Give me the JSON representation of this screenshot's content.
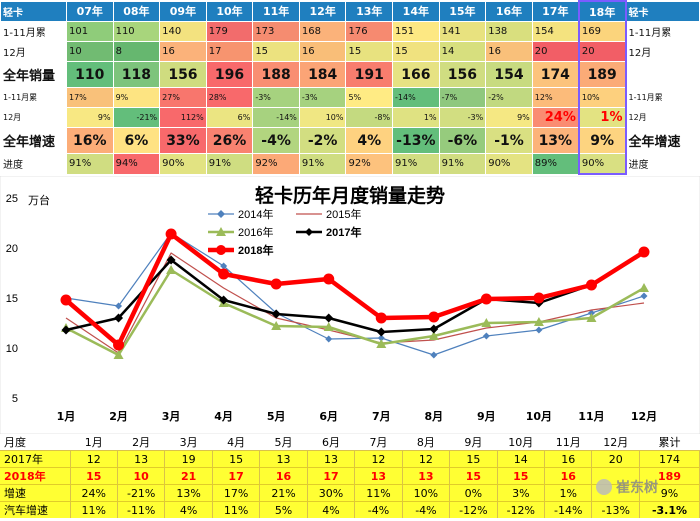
{
  "summary": {
    "header": {
      "label": "轻卡",
      "years": [
        "07年",
        "08年",
        "09年",
        "10年",
        "11年",
        "12年",
        "13年",
        "14年",
        "15年",
        "16年",
        "17年",
        "18年"
      ],
      "right_label": "轻卡"
    },
    "rows": [
      {
        "label": "1-11月累",
        "right_label": "1-11月累",
        "type": "normal",
        "values": [
          "101",
          "110",
          "140",
          "179",
          "173",
          "168",
          "176",
          "151",
          "141",
          "138",
          "154",
          "169"
        ]
      },
      {
        "label": "12月",
        "right_label": "12月",
        "type": "normal",
        "values": [
          "10",
          "8",
          "16",
          "17",
          "15",
          "16",
          "15",
          "15",
          "14",
          "16",
          "20",
          "20"
        ]
      },
      {
        "label": "全年销量",
        "right_label": "",
        "type": "big",
        "values": [
          "110",
          "118",
          "156",
          "196",
          "188",
          "184",
          "191",
          "166",
          "156",
          "154",
          "174",
          "189"
        ]
      },
      {
        "label": "1-11月累",
        "right_label": "1-11月累",
        "type": "small",
        "values": [
          "17%",
          "9%",
          "27%",
          "28%",
          "-3%",
          "-3%",
          "5%",
          "-14%",
          "-7%",
          "-2%",
          "12%",
          "10%"
        ]
      },
      {
        "label": "12月",
        "right_label": "12月",
        "type": "small",
        "values": [
          "9%",
          "-21%",
          "112%",
          "6%",
          "-14%",
          "10%",
          "-8%",
          "1%",
          "-3%",
          "9%",
          "24%",
          "1%"
        ]
      },
      {
        "label": "全年增速",
        "right_label": "全年增速",
        "type": "big",
        "values": [
          "16%",
          "6%",
          "33%",
          "26%",
          "-4%",
          "-2%",
          "4%",
          "-13%",
          "-6%",
          "-1%",
          "13%",
          "9%"
        ]
      },
      {
        "label": "进度",
        "right_label": "进度",
        "type": "normal",
        "values": [
          "91%",
          "94%",
          "90%",
          "91%",
          "92%",
          "91%",
          "92%",
          "91%",
          "91%",
          "90%",
          "89%",
          "90%"
        ]
      }
    ],
    "cell_colors": [
      [
        "#8fcc7a",
        "#a8d57c",
        "#f3e27f",
        "#f26c6c",
        "#f58c70",
        "#fbb27a",
        "#f68a70",
        "#fde883",
        "#e8e27f",
        "#d9df7e",
        "#f4e37f",
        "#fbd47c"
      ],
      [
        "#71bb72",
        "#66b76f",
        "#fbb27a",
        "#f7946f",
        "#ece27f",
        "#f9be78",
        "#e8e27f",
        "#f0e27f",
        "#d7df7e",
        "#f9c07a",
        "#f25e66",
        "#f25e66"
      ],
      [
        "#63be7b",
        "#7dc47c",
        "#cfdc7f",
        "#f8696b",
        "#f98e72",
        "#fba476",
        "#f87d6e",
        "#e6e283",
        "#d0dd81",
        "#c8db80",
        "#fcc37c",
        "#fbab77"
      ],
      [
        "#f9c17a",
        "#fde482",
        "#f8766d",
        "#f8696b",
        "#a6d27f",
        "#a6d27f",
        "#ffeb84",
        "#63be7b",
        "#8fc87e",
        "#c1d980",
        "#fcbb7a",
        "#fdd07e"
      ],
      [
        "#f8e883",
        "#63be7b",
        "#f8696b",
        "#ebe582",
        "#a7d27f",
        "#f0e783",
        "#c4da80",
        "#dfe282",
        "#d2de81",
        "#f5e883",
        "#fa8c72",
        "#e3e382"
      ],
      [
        "#fcad78",
        "#ffe283",
        "#f8696b",
        "#f98270",
        "#b2d57f",
        "#d2de81",
        "#fed280",
        "#63be7b",
        "#96cb7d",
        "#d9e082",
        "#fcb37a",
        "#fdd480"
      ],
      [
        "#d0dd81",
        "#f8696b",
        "#e2e382",
        "#cfdd81",
        "#fca977",
        "#cfdd81",
        "#fdc27d",
        "#d1dd81",
        "#d1dd81",
        "#e4e382",
        "#63be7b",
        "#d9e082"
      ]
    ]
  },
  "chart_data": {
    "type": "line",
    "title": "轻卡历年月度销量走势",
    "ylabel": "万台",
    "ylim": [
      5,
      25
    ],
    "yticks": [
      5,
      10,
      15,
      20,
      25
    ],
    "categories": [
      "1月",
      "2月",
      "3月",
      "4月",
      "5月",
      "6月",
      "7月",
      "8月",
      "9月",
      "10月",
      "11月",
      "12月"
    ],
    "series": [
      {
        "name": "2014年",
        "color": "#4f81bd",
        "marker": "diamond",
        "width": 1.2,
        "values": [
          15.0,
          14.2,
          21.5,
          18.2,
          13.5,
          10.9,
          11.0,
          9.3,
          11.2,
          11.8,
          13.5,
          15.2
        ]
      },
      {
        "name": "2015年",
        "color": "#c0504d",
        "marker": "none",
        "width": 1.2,
        "values": [
          13.0,
          9.5,
          19.5,
          16.0,
          13.0,
          11.8,
          10.5,
          10.8,
          12.0,
          12.6,
          13.8,
          14.5
        ]
      },
      {
        "name": "2016年",
        "color": "#9bbb59",
        "marker": "triangle",
        "width": 2.5,
        "values": [
          12.0,
          9.3,
          17.8,
          14.5,
          12.2,
          12.1,
          10.4,
          11.2,
          12.5,
          12.6,
          13.0,
          16.0
        ]
      },
      {
        "name": "2017年",
        "color": "#000000",
        "marker": "diamond",
        "width": 2.5,
        "values": [
          11.8,
          13.0,
          18.8,
          14.8,
          13.4,
          13.0,
          11.6,
          11.9,
          14.9,
          14.5,
          16.3,
          19.6
        ]
      },
      {
        "name": "2018年",
        "color": "#ff0000",
        "marker": "circle",
        "width": 4.5,
        "values": [
          14.8,
          10.3,
          21.4,
          17.4,
          16.4,
          16.9,
          13.0,
          13.1,
          14.9,
          15.0,
          16.3,
          19.6
        ]
      }
    ],
    "legend": "top-center",
    "grid": false
  },
  "detail": {
    "header": [
      "月度",
      "1月",
      "2月",
      "3月",
      "4月",
      "5月",
      "6月",
      "7月",
      "8月",
      "9月",
      "10月",
      "11月",
      "12月",
      "累计"
    ],
    "rows": [
      {
        "key": "y17",
        "cells": [
          "2017年",
          "12",
          "13",
          "19",
          "15",
          "13",
          "13",
          "12",
          "12",
          "15",
          "14",
          "16",
          "20",
          "174"
        ]
      },
      {
        "key": "y18",
        "cells": [
          "2018年",
          "15",
          "10",
          "21",
          "17",
          "16",
          "17",
          "13",
          "13",
          "15",
          "15",
          "16",
          "",
          "189"
        ]
      },
      {
        "key": "growth",
        "cells": [
          "增速",
          "24%",
          "-21%",
          "13%",
          "17%",
          "21%",
          "30%",
          "11%",
          "10%",
          "0%",
          "3%",
          "1%",
          "",
          "9%"
        ]
      },
      {
        "key": "auto",
        "cells": [
          "汽车增速",
          "11%",
          "-11%",
          "4%",
          "11%",
          "5%",
          "4%",
          "-4%",
          "-4%",
          "-12%",
          "-12%",
          "-14%",
          "-13%",
          "-3.1%"
        ]
      }
    ]
  },
  "watermark": {
    "text": "崔东树",
    "icon": "wechat-icon"
  }
}
